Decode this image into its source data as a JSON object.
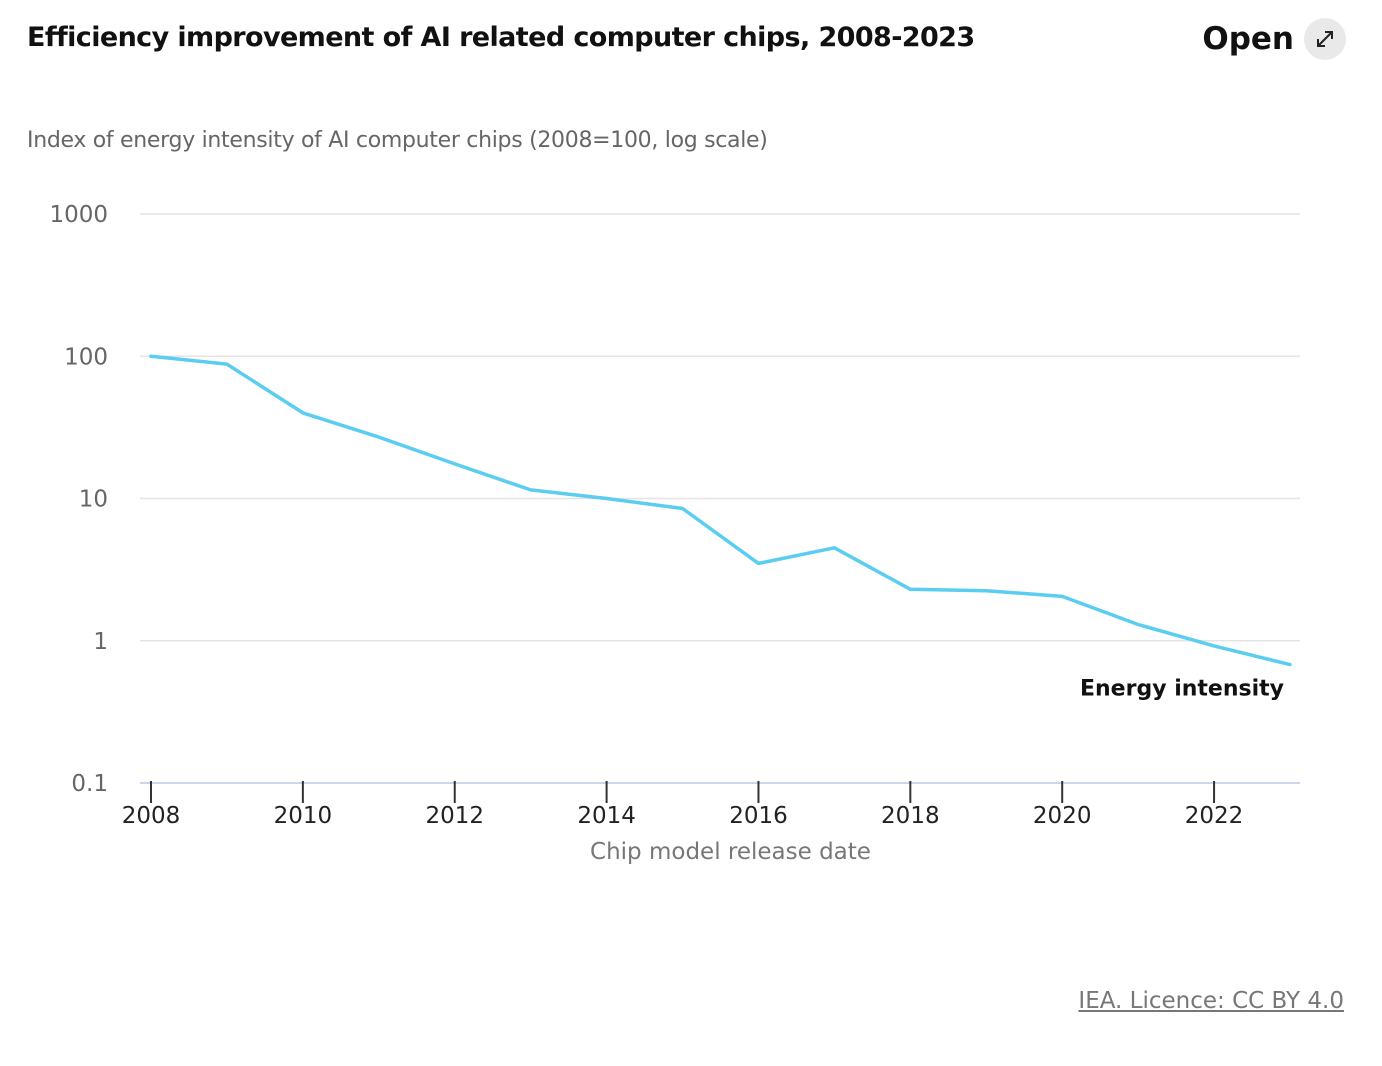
{
  "header": {
    "title": "Efficiency improvement of AI related computer chips, 2008-2023",
    "open_label": "Open",
    "open_icon": "expand-arrows-icon"
  },
  "subtitle": "Index of energy intensity of AI computer chips (2008=100, log scale)",
  "source": "IEA. Licence: CC BY 4.0",
  "colors": {
    "series": "#5bcdf0",
    "grid": "#e4e4e4",
    "axis": "#c9d6ec"
  },
  "chart_data": {
    "type": "line",
    "title": "Efficiency improvement of AI related computer chips, 2008-2023",
    "ylabel": "Index of energy intensity of AI computer chips (2008=100, log scale)",
    "xlabel": "Chip model release date",
    "yscale": "log",
    "ylim": [
      0.1,
      1000
    ],
    "xlim": [
      2008,
      2023
    ],
    "yticks": [
      0.1,
      1,
      10,
      100,
      1000
    ],
    "ytick_labels": [
      "0.1",
      "1",
      "10",
      "100",
      "1000"
    ],
    "xticks": [
      2008,
      2010,
      2012,
      2014,
      2016,
      2018,
      2020,
      2022
    ],
    "xtick_labels": [
      "2008",
      "2010",
      "2012",
      "2014",
      "2016",
      "2018",
      "2020",
      "2022"
    ],
    "grid": true,
    "series": [
      {
        "name": "Energy intensity",
        "x": [
          2008,
          2009,
          2010,
          2011,
          2012,
          2013,
          2014,
          2015,
          2016,
          2017,
          2018,
          2019,
          2020,
          2021,
          2022,
          2023
        ],
        "values": [
          100,
          88,
          40,
          27,
          17.5,
          11.5,
          10,
          8.5,
          3.5,
          4.5,
          2.3,
          2.25,
          2.05,
          1.3,
          0.92,
          0.68
        ]
      }
    ]
  }
}
